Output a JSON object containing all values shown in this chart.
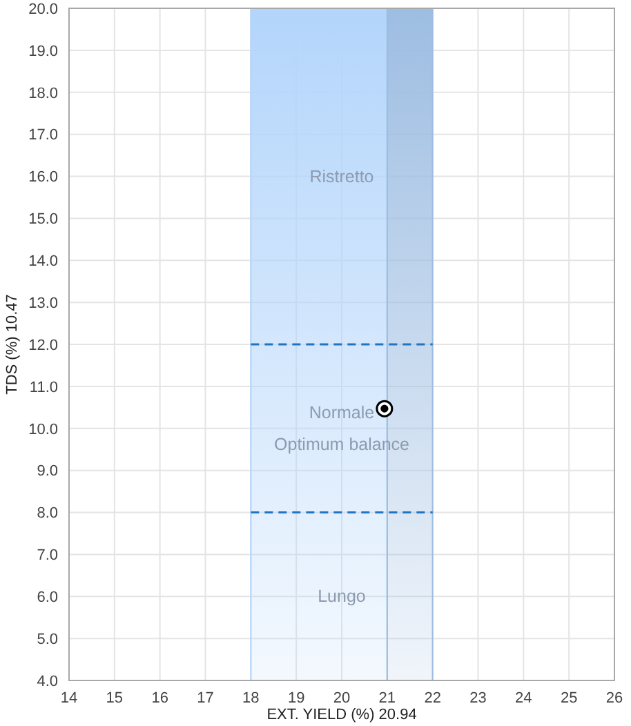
{
  "chart_data": {
    "type": "scatter",
    "xlabel": "EXT. YIELD (%) 20.94",
    "ylabel": "TDS (%) 10.47",
    "x": [
      20.94
    ],
    "values": [
      10.47
    ],
    "color": "#000000",
    "marker": "circle",
    "xlim": [
      14,
      26
    ],
    "xticks": [
      14,
      15,
      16,
      17,
      18,
      19,
      20,
      21,
      22,
      23,
      24,
      25,
      26
    ],
    "ylim": [
      4,
      20
    ],
    "yticks": [
      {
        "value": 4,
        "label": "4.0"
      },
      {
        "value": 5,
        "label": "5.0"
      },
      {
        "value": 6,
        "label": "6.0"
      },
      {
        "value": 7,
        "label": "7.0"
      },
      {
        "value": 8,
        "label": "8.0"
      },
      {
        "value": 9,
        "label": "9.0"
      },
      {
        "value": 10,
        "label": "10.0"
      },
      {
        "value": 11,
        "label": "11.0"
      },
      {
        "value": 12,
        "label": "12.0"
      },
      {
        "value": 13,
        "label": "13.0"
      },
      {
        "value": 14,
        "label": "14.0"
      },
      {
        "value": 15,
        "label": "15.0"
      },
      {
        "value": 16,
        "label": "16.0"
      },
      {
        "value": 17,
        "label": "17.0"
      },
      {
        "value": 18,
        "label": "18.0"
      },
      {
        "value": 19,
        "label": "19.0"
      },
      {
        "value": 20,
        "label": "20.0"
      }
    ],
    "grid": true,
    "bands": [
      {
        "axis": "x",
        "from": 18,
        "to": 21,
        "color": "#b3d5fb"
      },
      {
        "axis": "x",
        "from": 21,
        "to": 22,
        "color": "#9dbde2"
      }
    ],
    "ref_lines": [
      {
        "axis": "y",
        "value": 12,
        "color": "#1f74c4",
        "line_style": "dashed"
      },
      {
        "axis": "y",
        "value": 8,
        "color": "#1f74c4",
        "line_style": "dashed"
      }
    ],
    "annotations": [
      "Ristretto",
      "Normale",
      "Optimum balance",
      "Lungo"
    ]
  }
}
